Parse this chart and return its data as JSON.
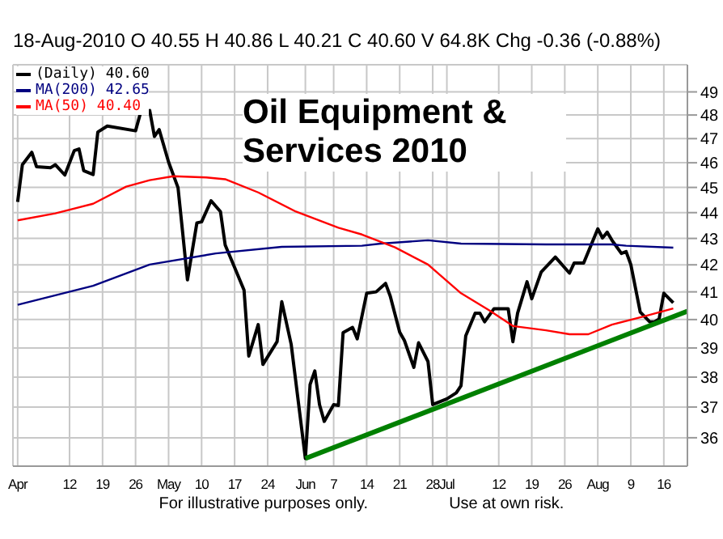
{
  "chart_data": {
    "type": "line",
    "title": "Oil Equipment & Services 2010",
    "subtitle": "18-Aug-2010 O 40.55 H 40.86 L 40.21 C 40.60 V 64.8K Chg -0.36 (-0.88%)",
    "log": "y",
    "grid": true,
    "legend": "top left",
    "marker": "none",
    "line_style": "solid",
    "xlim": [
      "2010-03-31",
      "2010-08-21"
    ],
    "ylim": [
      35.1,
      50.2
    ],
    "xticks": [
      {
        "value": "2010-04-01",
        "label": "Apr"
      },
      {
        "value": "2010-04-12",
        "label": "12"
      },
      {
        "value": "2010-04-19",
        "label": "19"
      },
      {
        "value": "2010-04-26",
        "label": "26"
      },
      {
        "value": "2010-05-03",
        "label": "May"
      },
      {
        "value": "2010-05-10",
        "label": "10"
      },
      {
        "value": "2010-05-17",
        "label": "17"
      },
      {
        "value": "2010-05-24",
        "label": "24"
      },
      {
        "value": "2010-06-01",
        "label": "Jun"
      },
      {
        "value": "2010-06-07",
        "label": "7"
      },
      {
        "value": "2010-06-14",
        "label": "14"
      },
      {
        "value": "2010-06-21",
        "label": "21"
      },
      {
        "value": "2010-06-28",
        "label": "28"
      },
      {
        "value": "2010-07-01",
        "label": "Jul"
      },
      {
        "value": "2010-07-12",
        "label": "12"
      },
      {
        "value": "2010-07-19",
        "label": "19"
      },
      {
        "value": "2010-07-26",
        "label": "26"
      },
      {
        "value": "2010-08-02",
        "label": "Aug"
      },
      {
        "value": "2010-08-09",
        "label": "9"
      },
      {
        "value": "2010-08-16",
        "label": "16"
      }
    ],
    "yticks": [
      36,
      37,
      38,
      39,
      40,
      41,
      42,
      43,
      44,
      45,
      46,
      47,
      48,
      49
    ],
    "series": [
      {
        "name": "(Daily) 40.60",
        "color": "#000000",
        "x": [
          "2010-04-01",
          "2010-04-02",
          "2010-04-04",
          "2010-04-05",
          "2010-04-08",
          "2010-04-09",
          "2010-04-11",
          "2010-04-13",
          "2010-04-14",
          "2010-04-15",
          "2010-04-17",
          "2010-04-18",
          "2010-04-20",
          "2010-04-26",
          "2010-04-27",
          "2010-04-29",
          "2010-04-30",
          "2010-05-01",
          "2010-05-03",
          "2010-05-05",
          "2010-05-06",
          "2010-05-07",
          "2010-05-09",
          "2010-05-10",
          "2010-05-12",
          "2010-05-14",
          "2010-05-15",
          "2010-05-17",
          "2010-05-19",
          "2010-05-20",
          "2010-05-22",
          "2010-05-23",
          "2010-05-26",
          "2010-05-27",
          "2010-05-29",
          "2010-06-01",
          "2010-06-02",
          "2010-06-03",
          "2010-06-04",
          "2010-06-05",
          "2010-06-07",
          "2010-06-08",
          "2010-06-09",
          "2010-06-11",
          "2010-06-12",
          "2010-06-14",
          "2010-06-16",
          "2010-06-18",
          "2010-06-19",
          "2010-06-21",
          "2010-06-22",
          "2010-06-24",
          "2010-06-25",
          "2010-06-27",
          "2010-06-28",
          "2010-07-01",
          "2010-07-03",
          "2010-07-04",
          "2010-07-05",
          "2010-07-07",
          "2010-07-08",
          "2010-07-09",
          "2010-07-11",
          "2010-07-14",
          "2010-07-15",
          "2010-07-16",
          "2010-07-18",
          "2010-07-19",
          "2010-07-21",
          "2010-07-24",
          "2010-07-27",
          "2010-07-28",
          "2010-07-30",
          "2010-08-02",
          "2010-08-03",
          "2010-08-04",
          "2010-08-05",
          "2010-08-07",
          "2010-08-08",
          "2010-08-09",
          "2010-08-11",
          "2010-08-13",
          "2010-08-14",
          "2010-08-15",
          "2010-08-16",
          "2010-08-18"
        ],
        "values": [
          44.42,
          45.92,
          46.43,
          45.84,
          45.8,
          45.92,
          45.5,
          46.5,
          46.57,
          45.68,
          45.52,
          47.28,
          47.53,
          47.33,
          48.06,
          48.19,
          47.09,
          47.38,
          46.03,
          44.99,
          43.2,
          41.44,
          43.6,
          43.64,
          44.47,
          44.04,
          42.75,
          41.9,
          41.06,
          38.72,
          39.82,
          38.43,
          39.22,
          40.64,
          39.12,
          35.34,
          37.75,
          38.21,
          37.08,
          36.53,
          37.08,
          37.05,
          39.54,
          39.72,
          39.32,
          40.95,
          41.0,
          41.31,
          40.84,
          39.55,
          39.26,
          38.33,
          39.18,
          38.53,
          37.08,
          37.27,
          37.47,
          37.71,
          39.42,
          40.23,
          40.23,
          39.92,
          40.39,
          40.39,
          39.22,
          40.23,
          41.37,
          40.75,
          41.73,
          42.29,
          41.69,
          42.07,
          42.07,
          43.37,
          43.02,
          43.24,
          42.93,
          42.43,
          42.5,
          42.01,
          40.27,
          39.92,
          39.92,
          40.02,
          40.95,
          40.6
        ]
      },
      {
        "name": "MA(200) 42.65",
        "color": "#000080",
        "x": [
          "2010-04-01",
          "2010-04-17",
          "2010-04-29",
          "2010-05-13",
          "2010-05-27",
          "2010-06-13",
          "2010-06-17",
          "2010-06-27",
          "2010-07-04",
          "2010-07-22",
          "2010-08-05",
          "2010-08-08",
          "2010-08-18"
        ],
        "values": [
          40.53,
          41.22,
          42.01,
          42.43,
          42.68,
          42.72,
          42.8,
          42.93,
          42.8,
          42.77,
          42.77,
          42.72,
          42.65
        ]
      },
      {
        "name": "MA(50) 40.40",
        "color": "#ff0000",
        "x": [
          "2010-04-01",
          "2010-04-09",
          "2010-04-17",
          "2010-04-24",
          "2010-04-29",
          "2010-05-04",
          "2010-05-11",
          "2010-05-15",
          "2010-05-22",
          "2010-05-30",
          "2010-06-08",
          "2010-06-13",
          "2010-06-20",
          "2010-06-27",
          "2010-07-04",
          "2010-07-10",
          "2010-07-15",
          "2010-07-22",
          "2010-07-27",
          "2010-07-31",
          "2010-08-05",
          "2010-08-12",
          "2010-08-18"
        ],
        "values": [
          43.7,
          43.97,
          44.35,
          45.03,
          45.29,
          45.45,
          45.4,
          45.33,
          44.8,
          44.04,
          43.41,
          43.15,
          42.66,
          42.01,
          40.95,
          40.33,
          39.77,
          39.62,
          39.48,
          39.48,
          39.82,
          40.12,
          40.4
        ]
      },
      {
        "color": "#008000",
        "x": [
          "2010-06-01",
          "2010-08-21"
        ],
        "values": [
          35.34,
          40.3
        ]
      }
    ],
    "annotations": [
      "For illustrative purposes only.",
      "Use at own risk."
    ]
  }
}
